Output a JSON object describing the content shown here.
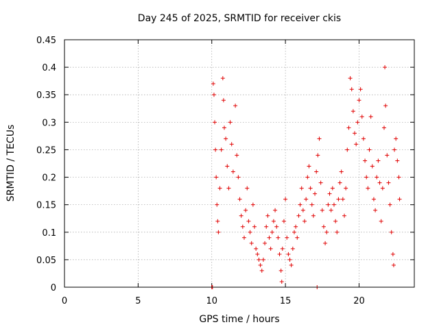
{
  "chart_data": {
    "type": "scatter",
    "title": "Day 245 of 2025, SRMTID for receiver ckis",
    "xlabel": "GPS time / hours",
    "ylabel": "SRMTID / TECUs",
    "xlim": [
      0,
      23.75
    ],
    "ylim": [
      0,
      0.45
    ],
    "grid": true,
    "marker": "+",
    "color": "#e00000",
    "x_ticks": [
      0,
      5,
      10,
      15,
      20
    ],
    "x_tick_labels": [
      "0",
      "5",
      "10",
      "15",
      "20"
    ],
    "y_ticks": [
      0,
      0.05,
      0.1,
      0.15,
      0.2,
      0.25,
      0.3,
      0.35,
      0.4,
      0.45
    ],
    "y_tick_labels": [
      "0",
      "0.05",
      "0.1",
      "0.15",
      "0.2",
      "0.25",
      "0.3",
      "0.35",
      "0.4",
      "0.45"
    ],
    "series": [
      {
        "name": "SRMTID",
        "points": [
          [
            10.0,
            0.0
          ],
          [
            10.05,
            0.0
          ],
          [
            17.15,
            0.0
          ],
          [
            10.1,
            0.37
          ],
          [
            10.15,
            0.35
          ],
          [
            10.2,
            0.3
          ],
          [
            10.25,
            0.25
          ],
          [
            10.3,
            0.2
          ],
          [
            10.35,
            0.15
          ],
          [
            10.4,
            0.12
          ],
          [
            10.45,
            0.1
          ],
          [
            10.55,
            0.18
          ],
          [
            10.65,
            0.25
          ],
          [
            10.75,
            0.38
          ],
          [
            10.8,
            0.34
          ],
          [
            10.85,
            0.29
          ],
          [
            10.95,
            0.27
          ],
          [
            11.05,
            0.22
          ],
          [
            11.15,
            0.18
          ],
          [
            11.25,
            0.3
          ],
          [
            11.35,
            0.26
          ],
          [
            11.45,
            0.21
          ],
          [
            11.6,
            0.33
          ],
          [
            11.7,
            0.24
          ],
          [
            11.8,
            0.2
          ],
          [
            11.9,
            0.16
          ],
          [
            12.0,
            0.13
          ],
          [
            12.1,
            0.11
          ],
          [
            12.2,
            0.09
          ],
          [
            12.3,
            0.14
          ],
          [
            12.4,
            0.18
          ],
          [
            12.5,
            0.12
          ],
          [
            12.6,
            0.1
          ],
          [
            12.7,
            0.08
          ],
          [
            12.8,
            0.15
          ],
          [
            12.9,
            0.11
          ],
          [
            13.0,
            0.07
          ],
          [
            13.1,
            0.06
          ],
          [
            13.2,
            0.05
          ],
          [
            13.3,
            0.04
          ],
          [
            13.4,
            0.03
          ],
          [
            13.5,
            0.05
          ],
          [
            13.6,
            0.08
          ],
          [
            13.7,
            0.11
          ],
          [
            13.8,
            0.13
          ],
          [
            13.9,
            0.09
          ],
          [
            14.0,
            0.07
          ],
          [
            14.1,
            0.1
          ],
          [
            14.2,
            0.12
          ],
          [
            14.3,
            0.14
          ],
          [
            14.4,
            0.11
          ],
          [
            14.5,
            0.09
          ],
          [
            14.6,
            0.06
          ],
          [
            14.7,
            0.03
          ],
          [
            14.75,
            0.01
          ],
          [
            14.8,
            0.07
          ],
          [
            14.9,
            0.12
          ],
          [
            15.0,
            0.16
          ],
          [
            15.1,
            0.09
          ],
          [
            15.2,
            0.06
          ],
          [
            15.3,
            0.05
          ],
          [
            15.4,
            0.04
          ],
          [
            15.5,
            0.07
          ],
          [
            15.6,
            0.1
          ],
          [
            15.7,
            0.11
          ],
          [
            15.8,
            0.09
          ],
          [
            15.9,
            0.13
          ],
          [
            16.0,
            0.15
          ],
          [
            16.1,
            0.18
          ],
          [
            16.2,
            0.14
          ],
          [
            16.3,
            0.12
          ],
          [
            16.4,
            0.16
          ],
          [
            16.5,
            0.2
          ],
          [
            16.6,
            0.22
          ],
          [
            16.7,
            0.18
          ],
          [
            16.8,
            0.15
          ],
          [
            16.9,
            0.13
          ],
          [
            17.0,
            0.17
          ],
          [
            17.1,
            0.21
          ],
          [
            17.2,
            0.24
          ],
          [
            17.3,
            0.27
          ],
          [
            17.4,
            0.19
          ],
          [
            17.5,
            0.14
          ],
          [
            17.6,
            0.11
          ],
          [
            17.7,
            0.08
          ],
          [
            17.8,
            0.1
          ],
          [
            17.9,
            0.15
          ],
          [
            18.0,
            0.17
          ],
          [
            18.1,
            0.14
          ],
          [
            18.2,
            0.18
          ],
          [
            18.3,
            0.15
          ],
          [
            18.4,
            0.12
          ],
          [
            18.5,
            0.1
          ],
          [
            18.6,
            0.16
          ],
          [
            18.7,
            0.19
          ],
          [
            18.8,
            0.21
          ],
          [
            18.9,
            0.16
          ],
          [
            19.0,
            0.13
          ],
          [
            19.1,
            0.18
          ],
          [
            19.2,
            0.25
          ],
          [
            19.3,
            0.29
          ],
          [
            19.4,
            0.38
          ],
          [
            19.5,
            0.36
          ],
          [
            19.6,
            0.32
          ],
          [
            19.7,
            0.28
          ],
          [
            19.8,
            0.26
          ],
          [
            19.9,
            0.3
          ],
          [
            20.0,
            0.34
          ],
          [
            20.1,
            0.36
          ],
          [
            20.2,
            0.31
          ],
          [
            20.3,
            0.27
          ],
          [
            20.4,
            0.23
          ],
          [
            20.5,
            0.2
          ],
          [
            20.6,
            0.18
          ],
          [
            20.7,
            0.25
          ],
          [
            20.8,
            0.31
          ],
          [
            20.9,
            0.22
          ],
          [
            21.0,
            0.16
          ],
          [
            21.1,
            0.14
          ],
          [
            21.2,
            0.2
          ],
          [
            21.3,
            0.23
          ],
          [
            21.4,
            0.19
          ],
          [
            21.5,
            0.12
          ],
          [
            21.6,
            0.18
          ],
          [
            21.7,
            0.29
          ],
          [
            21.75,
            0.4
          ],
          [
            21.8,
            0.33
          ],
          [
            21.9,
            0.24
          ],
          [
            22.0,
            0.19
          ],
          [
            22.1,
            0.15
          ],
          [
            22.2,
            0.1
          ],
          [
            22.3,
            0.06
          ],
          [
            22.35,
            0.04
          ],
          [
            22.4,
            0.25
          ],
          [
            22.5,
            0.27
          ],
          [
            22.6,
            0.23
          ],
          [
            22.7,
            0.2
          ],
          [
            22.75,
            0.16
          ]
        ]
      }
    ]
  }
}
